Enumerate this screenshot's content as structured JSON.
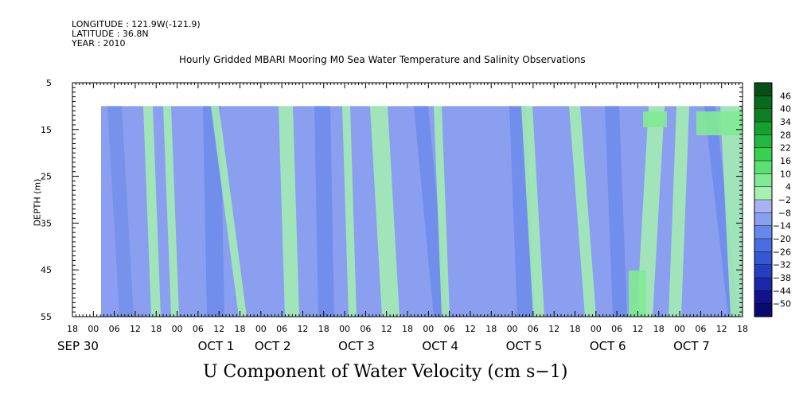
{
  "header": {
    "longitude": "LONGITUDE : 121.9W(-121.9)",
    "latitude": "LATITUDE : 36.8N",
    "year": "YEAR : 2010"
  },
  "chart_data": {
    "type": "heatmap",
    "title": "Hourly Gridded MBARI Mooring M0 Sea Water Temperature and Salinity Observations",
    "xlabel": "U Component of Water Velocity (cm s−1)",
    "ylabel": "DEPTH (m)",
    "ylim": [
      55,
      5
    ],
    "y_ticks": [
      5,
      15,
      25,
      35,
      45,
      55
    ],
    "data_depth_range": [
      10,
      55
    ],
    "hour_tick_labels": [
      "18",
      "00",
      "06",
      "12",
      "18",
      "00",
      "06",
      "12",
      "18",
      "00",
      "06",
      "12",
      "18",
      "00",
      "06",
      "12",
      "18",
      "00",
      "06",
      "12",
      "18",
      "00",
      "06",
      "12",
      "18",
      "00",
      "06",
      "12",
      "18",
      "00",
      "06",
      "12",
      "18"
    ],
    "date_labels": [
      "SEP 30",
      "OCT  1",
      "OCT  2",
      "OCT  3",
      "OCT  4",
      "OCT  5",
      "OCT  6",
      "OCT  7"
    ],
    "time_range": [
      "2010-09-29 18:00",
      "2010-10-07 18:00"
    ],
    "data_time_start": "2010-09-30 02:00",
    "colorbar": {
      "levels": [
        -50,
        -44,
        -38,
        -32,
        -26,
        -20,
        -14,
        -8,
        -2,
        4,
        10,
        16,
        22,
        28,
        34,
        40,
        46
      ],
      "colors": [
        "#0a0a6e",
        "#12128c",
        "#1a28a8",
        "#2440c0",
        "#3358d2",
        "#4a6ee0",
        "#6688ea",
        "#8a9ff0",
        "#a8b4f2",
        "#a6f0b0",
        "#82ea94",
        "#5ae070",
        "#38d050",
        "#22b840",
        "#15a030",
        "#0c8025",
        "#086a1e",
        "#055014"
      ]
    },
    "colors": {
      "background_field": "#8a9ff0",
      "positive_field": "#a6f0b0",
      "strong_negative": "#6688ea"
    }
  }
}
